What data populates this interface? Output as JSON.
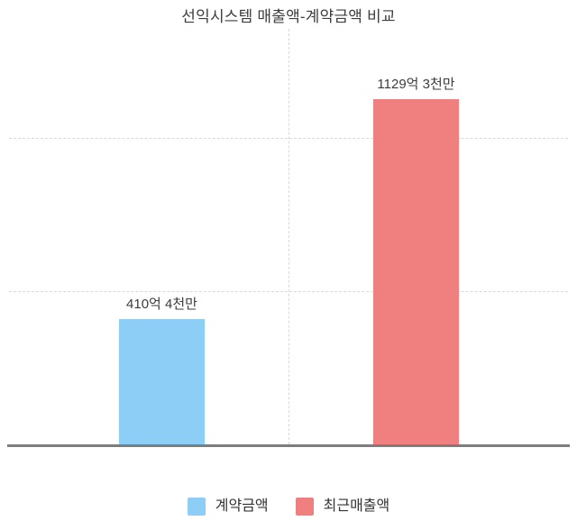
{
  "title": "선익시스템 매출액-계약금액 비교",
  "chart_data": {
    "type": "bar",
    "title": "선익시스템 매출액-계약금액 비교",
    "categories": [
      "계약금액",
      "최근매출액"
    ],
    "values": [
      410.4,
      1129.3
    ],
    "value_labels": [
      "410억 4천만",
      "1129억 3천만"
    ],
    "unit": "억 원",
    "xlabel": "",
    "ylabel": "",
    "ylim": [
      0,
      1360
    ],
    "gridlines_y": [
      500,
      1000
    ],
    "grid": "dashed",
    "legend_position": "bottom",
    "bar_colors": [
      "#8CCEF6",
      "#F08080"
    ],
    "legend": [
      {
        "label": "계약금액",
        "color": "#8CCEF6"
      },
      {
        "label": "최근매출액",
        "color": "#F08080"
      }
    ]
  },
  "colors": {
    "axis": "#7d7d7d",
    "gridline": "#d9d9d9",
    "title_text": "#3d3d3d",
    "label_text": "#3c3c3c",
    "legend_text": "#333333",
    "background": "#ffffff"
  }
}
